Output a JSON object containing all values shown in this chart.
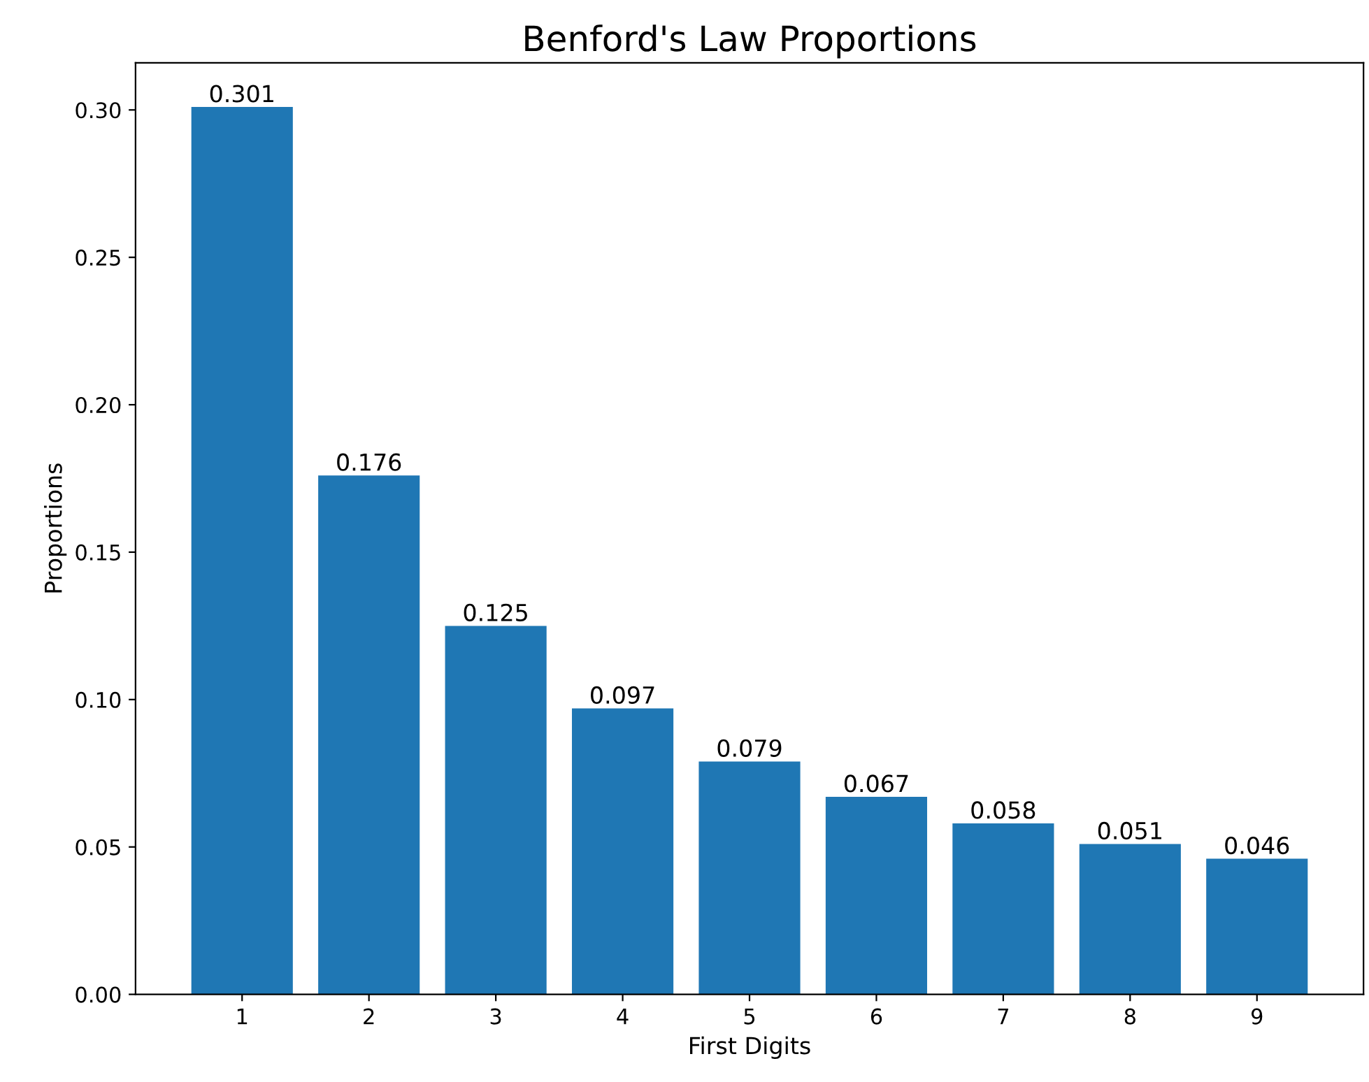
{
  "chart_data": {
    "type": "bar",
    "title": "Benford's Law Proportions",
    "xlabel": "First Digits",
    "ylabel": "Proportions",
    "categories": [
      "1",
      "2",
      "3",
      "4",
      "5",
      "6",
      "7",
      "8",
      "9"
    ],
    "values": [
      0.301,
      0.176,
      0.125,
      0.097,
      0.079,
      0.067,
      0.058,
      0.051,
      0.046
    ],
    "color": "#1f77b4",
    "data_labels": true,
    "ylim": [
      0,
      0.316
    ],
    "yticks": [
      {
        "value": 0,
        "label": "0.00"
      },
      {
        "value": 0.05,
        "label": "0.05"
      },
      {
        "value": 0.1,
        "label": "0.10"
      },
      {
        "value": 0.15,
        "label": "0.15"
      },
      {
        "value": 0.2,
        "label": "0.20"
      },
      {
        "value": 0.25,
        "label": "0.25"
      },
      {
        "value": 0.3,
        "label": "0.30"
      }
    ],
    "grid": false,
    "legend": false
  }
}
